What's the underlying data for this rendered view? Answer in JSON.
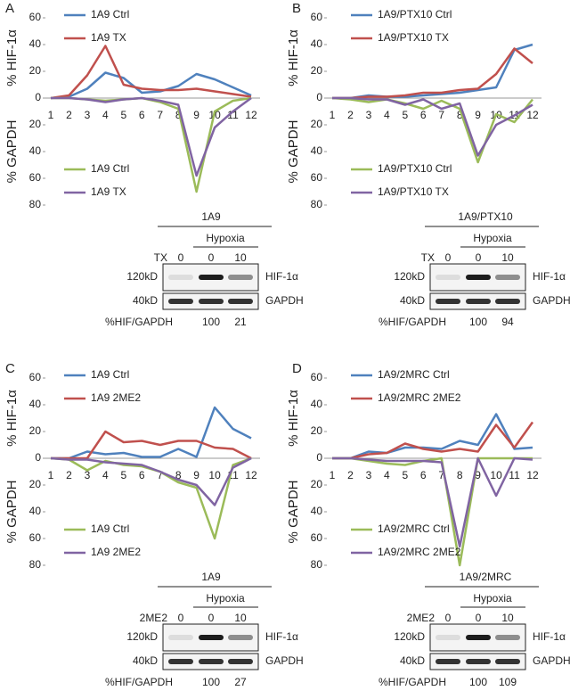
{
  "panel_labels": [
    "A",
    "B",
    "C",
    "D"
  ],
  "chart_data": [
    {
      "type": "line",
      "y_label_upper": "% HIF-1α",
      "y_label_lower": "% GAPDH",
      "categories": [
        "1",
        "2",
        "3",
        "4",
        "5",
        "6",
        "7",
        "8",
        "9",
        "10",
        "11",
        "12"
      ],
      "ylim": [
        -80,
        60
      ],
      "yticks": [
        60,
        40,
        20,
        0,
        {
          "value": -20,
          "label": "20"
        },
        {
          "value": -40,
          "label": "40"
        },
        {
          "value": -60,
          "label": "60"
        },
        {
          "value": -80,
          "label": "80"
        }
      ],
      "series": [
        {
          "name": "1A9 Ctrl",
          "color": "#4f81bd",
          "values": [
            0,
            1,
            7,
            19,
            15,
            4,
            5,
            9,
            18,
            14,
            8,
            2
          ]
        },
        {
          "name": "1A9 TX",
          "color": "#c0504d",
          "values": [
            0,
            2,
            17,
            39,
            10,
            7,
            6,
            6,
            7,
            5,
            3,
            1
          ]
        },
        {
          "name": "1A9 Ctrl",
          "color": "#9bbb59",
          "values": [
            0,
            0,
            -1,
            -2,
            -1,
            0,
            -3,
            -8,
            -70,
            -10,
            -2,
            0
          ]
        },
        {
          "name": "1A9 TX",
          "color": "#8064a2",
          "values": [
            0,
            0,
            -1,
            -3,
            -1,
            0,
            -2,
            -5,
            -58,
            -22,
            -10,
            0
          ]
        }
      ]
    },
    {
      "type": "line",
      "y_label_upper": "% HIF-1α",
      "y_label_lower": "% GAPDH",
      "categories": [
        "1",
        "2",
        "3",
        "4",
        "5",
        "6",
        "7",
        "8",
        "9",
        "10",
        "11",
        "12"
      ],
      "ylim": [
        -80,
        60
      ],
      "yticks": [
        60,
        40,
        20,
        0,
        {
          "value": -20,
          "label": "20"
        },
        {
          "value": -40,
          "label": "40"
        },
        {
          "value": -60,
          "label": "60"
        },
        {
          "value": -80,
          "label": "80"
        }
      ],
      "series": [
        {
          "name": "1A9/PTX10 Ctrl",
          "color": "#4f81bd",
          "values": [
            0,
            0,
            2,
            1,
            1,
            2,
            3,
            4,
            6,
            8,
            36,
            40
          ]
        },
        {
          "name": "1A9/PTX10 TX",
          "color": "#c0504d",
          "values": [
            0,
            0,
            1,
            1,
            2,
            4,
            4,
            6,
            7,
            18,
            37,
            26
          ]
        },
        {
          "name": "1A9/PTX10 Ctrl",
          "color": "#9bbb59",
          "values": [
            0,
            -1,
            -3,
            -1,
            -4,
            -8,
            -2,
            -8,
            -48,
            -12,
            -18,
            -1
          ]
        },
        {
          "name": "1A9/PTX10 TX",
          "color": "#8064a2",
          "values": [
            0,
            0,
            -1,
            -1,
            -5,
            -1,
            -8,
            -4,
            -43,
            -20,
            -13,
            -5
          ]
        }
      ]
    },
    {
      "type": "line",
      "y_label_upper": "% HIF-1α",
      "y_label_lower": "% GAPDH",
      "categories": [
        "1",
        "2",
        "3",
        "4",
        "5",
        "6",
        "7",
        "8",
        "9",
        "10",
        "11",
        "12"
      ],
      "ylim": [
        -80,
        60
      ],
      "yticks": [
        60,
        40,
        20,
        0,
        {
          "value": -20,
          "label": "20"
        },
        {
          "value": -40,
          "label": "40"
        },
        {
          "value": -60,
          "label": "60"
        },
        {
          "value": -80,
          "label": "80"
        }
      ],
      "series": [
        {
          "name": "1A9 Ctrl",
          "color": "#4f81bd",
          "values": [
            0,
            0,
            5,
            3,
            4,
            1,
            1,
            7,
            1,
            38,
            22,
            15
          ]
        },
        {
          "name": "1A9 2ME2",
          "color": "#c0504d",
          "values": [
            0,
            0,
            0,
            20,
            12,
            13,
            10,
            13,
            13,
            8,
            7,
            0
          ]
        },
        {
          "name": "1A9 Ctrl",
          "color": "#9bbb59",
          "values": [
            0,
            -1,
            -9,
            -2,
            -5,
            -6,
            -10,
            -18,
            -22,
            -60,
            -5,
            0
          ]
        },
        {
          "name": "1A9 2ME2",
          "color": "#8064a2",
          "values": [
            0,
            -1,
            -1,
            -3,
            -4,
            -5,
            -10,
            -16,
            -20,
            -35,
            -7,
            0
          ]
        }
      ]
    },
    {
      "type": "line",
      "y_label_upper": "% HIF-1α",
      "y_label_lower": "% GAPDH",
      "categories": [
        "1",
        "2",
        "3",
        "4",
        "5",
        "6",
        "7",
        "8",
        "9",
        "10",
        "11",
        "12"
      ],
      "ylim": [
        -80,
        60
      ],
      "yticks": [
        60,
        40,
        20,
        0,
        {
          "value": -20,
          "label": "20"
        },
        {
          "value": -40,
          "label": "40"
        },
        {
          "value": -60,
          "label": "60"
        },
        {
          "value": -80,
          "label": "80"
        }
      ],
      "series": [
        {
          "name": "1A9/2MRC Ctrl",
          "color": "#4f81bd",
          "values": [
            0,
            0,
            5,
            4,
            8,
            8,
            7,
            13,
            10,
            33,
            7,
            8
          ]
        },
        {
          "name": "1A9/2MRC 2ME2",
          "color": "#c0504d",
          "values": [
            0,
            0,
            3,
            4,
            11,
            7,
            5,
            7,
            5,
            25,
            8,
            27
          ]
        },
        {
          "name": "1A9/2MRC Ctrl",
          "color": "#9bbb59",
          "values": [
            0,
            0,
            -2,
            -4,
            -5,
            -2,
            0,
            -80,
            0,
            0,
            0,
            0
          ]
        },
        {
          "name": "1A9/2MRC 2ME2",
          "color": "#8064a2",
          "values": [
            0,
            0,
            -1,
            -2,
            -2,
            -2,
            -3,
            -66,
            0,
            -28,
            0,
            -1
          ]
        }
      ]
    }
  ],
  "blots": [
    {
      "title": "1A9",
      "treatment": "TX",
      "condition": "Hypoxia",
      "lanes": [
        0,
        0,
        10
      ],
      "markers": [
        "120kD",
        "40kD"
      ],
      "proteins": [
        "HIF-1α",
        "GAPDH"
      ],
      "ratio_label": "%HIF/GAPDH",
      "ratios": [
        100,
        21
      ]
    },
    {
      "title": "1A9/PTX10",
      "treatment": "TX",
      "condition": "Hypoxia",
      "lanes": [
        0,
        0,
        10
      ],
      "markers": [
        "120kD",
        "40kD"
      ],
      "proteins": [
        "HIF-1α",
        "GAPDH"
      ],
      "ratio_label": "%HIF/GAPDH",
      "ratios": [
        100,
        94
      ]
    },
    {
      "title": "1A9",
      "treatment": "2ME2",
      "condition": "Hypoxia",
      "lanes": [
        0,
        0,
        10
      ],
      "markers": [
        "120kD",
        "40kD"
      ],
      "proteins": [
        "HIF-1α",
        "GAPDH"
      ],
      "ratio_label": "%HIF/GAPDH",
      "ratios": [
        100,
        27
      ]
    },
    {
      "title": "1A9/2MRC",
      "treatment": "2ME2",
      "condition": "Hypoxia",
      "lanes": [
        0,
        0,
        10
      ],
      "markers": [
        "120kD",
        "40kD"
      ],
      "proteins": [
        "HIF-1α",
        "GAPDH"
      ],
      "ratio_label": "%HIF/GAPDH",
      "ratios": [
        100,
        109
      ]
    }
  ]
}
